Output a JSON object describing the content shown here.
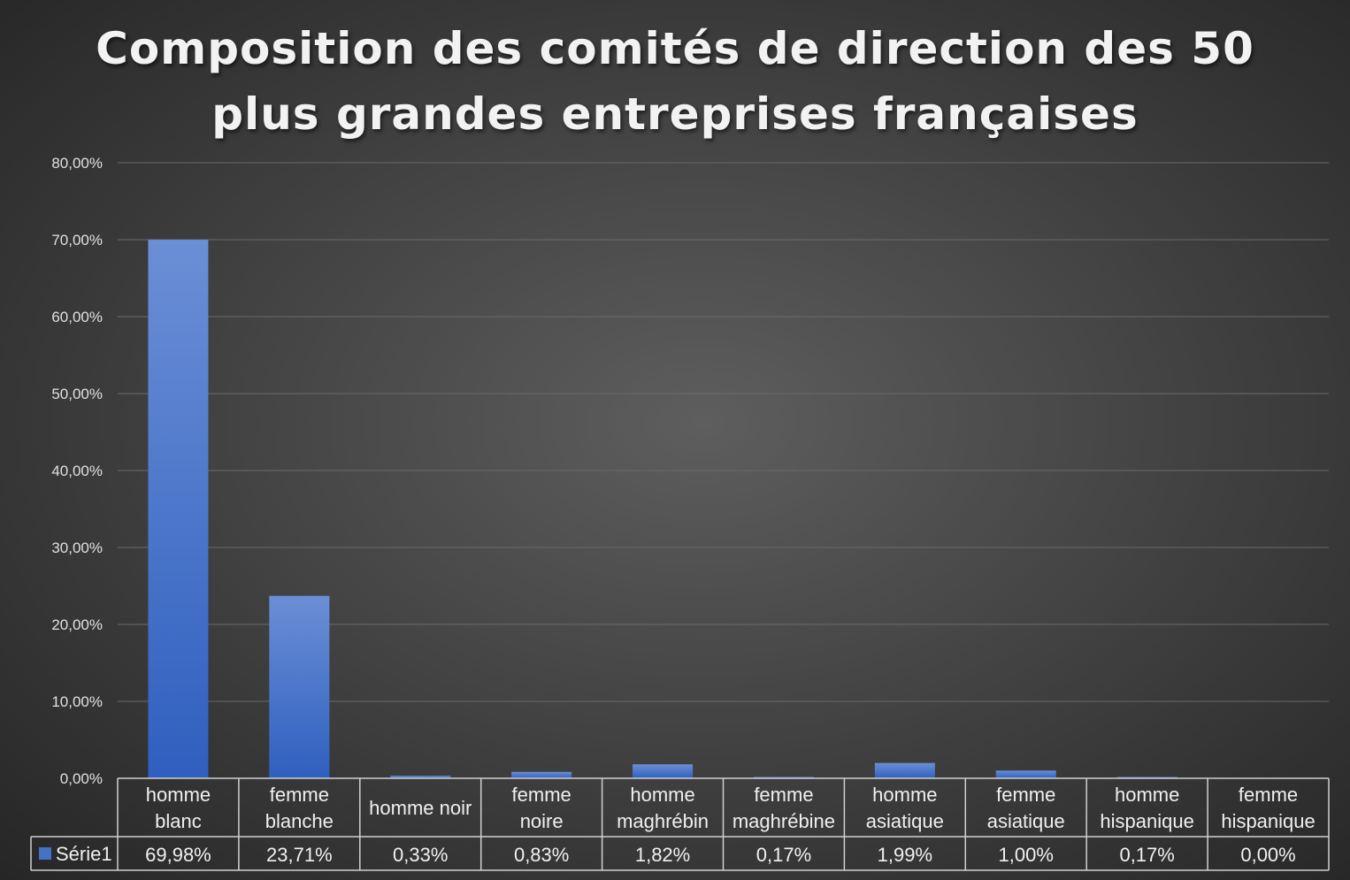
{
  "chart_data": {
    "type": "bar",
    "title_lines": [
      "Composition des comités de direction des 50",
      "plus grandes entreprises françaises"
    ],
    "categories": [
      [
        "homme",
        "blanc"
      ],
      [
        "femme",
        "blanche"
      ],
      [
        "homme noir"
      ],
      [
        "femme",
        "noire"
      ],
      [
        "homme",
        "maghrébin"
      ],
      [
        "femme",
        "maghrébine"
      ],
      [
        "homme",
        "asiatique"
      ],
      [
        "femme",
        "asiatique"
      ],
      [
        "homme",
        "hispanique"
      ],
      [
        "femme",
        "hispanique"
      ]
    ],
    "series": [
      {
        "name": "Série1",
        "values": [
          69.98,
          23.71,
          0.33,
          0.83,
          1.82,
          0.17,
          1.99,
          1.0,
          0.17,
          0.0
        ],
        "value_labels": [
          "69,98%",
          "23,71%",
          "0,33%",
          "0,83%",
          "1,82%",
          "0,17%",
          "1,99%",
          "1,00%",
          "0,17%",
          "0,00%"
        ],
        "color": "#4472c4"
      }
    ],
    "y_ticks": [
      0,
      10,
      20,
      30,
      40,
      50,
      60,
      70,
      80
    ],
    "y_tick_labels": [
      "0,00%",
      "10,00%",
      "20,00%",
      "30,00%",
      "40,00%",
      "50,00%",
      "60,00%",
      "70,00%",
      "80,00%"
    ],
    "ylim": [
      0,
      80
    ],
    "grid": true,
    "data_table": true,
    "colors": {
      "bar_top": "#6b8fd6",
      "bar_bottom": "#2f5fbf",
      "grid": "#6a6a6a",
      "table_border": "#d0d0d0",
      "text": "#f0f0f0"
    }
  }
}
